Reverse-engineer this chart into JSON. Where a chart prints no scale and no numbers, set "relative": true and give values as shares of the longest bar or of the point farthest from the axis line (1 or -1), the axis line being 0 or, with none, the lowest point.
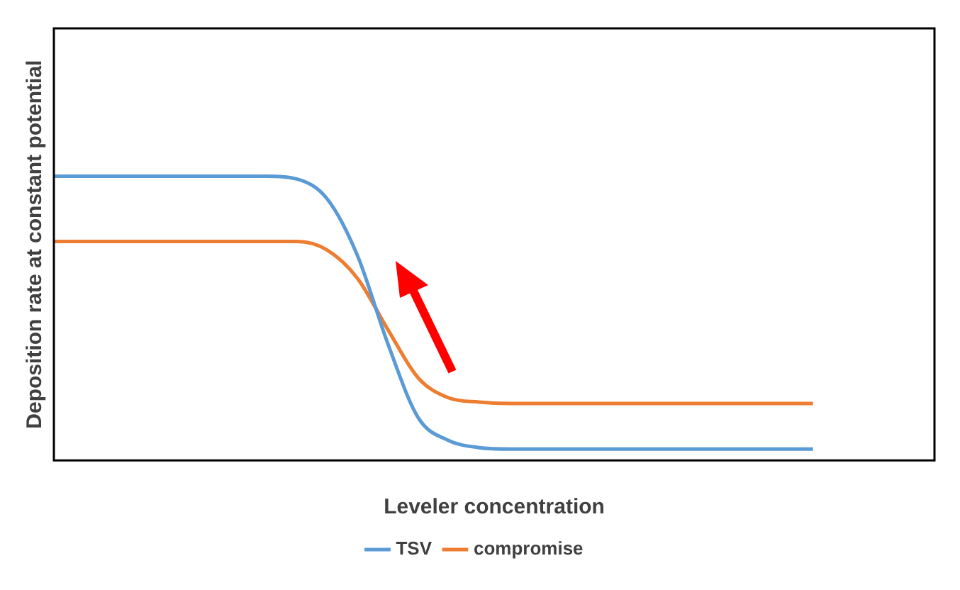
{
  "chart_data": {
    "type": "line",
    "relative": true,
    "xlabel": "Leveler concentration",
    "ylabel": "Deposition rate at constant potential",
    "categories": [
      null,
      null,
      null,
      null,
      null,
      null,
      null,
      null,
      null,
      null,
      null,
      null,
      null,
      null,
      null,
      null,
      null,
      null,
      null,
      null,
      null,
      null,
      null,
      null,
      null,
      null,
      null,
      null,
      null,
      null
    ],
    "series": [
      {
        "name": "TSV",
        "color": "#5b9bd5",
        "values": [
          1,
          1,
          1,
          1,
          1,
          1,
          1,
          1,
          0.99,
          0.92,
          0.72,
          0.41,
          0.15,
          0.07,
          0.045,
          0.04,
          0.04,
          0.04,
          0.04,
          0.04,
          0.04,
          0.04,
          0.04,
          0.04,
          0.04,
          0.04,
          null,
          null,
          null,
          null
        ]
      },
      {
        "name": "compromise",
        "color": "#ed7d31",
        "values": [
          0.77,
          0.77,
          0.77,
          0.77,
          0.77,
          0.77,
          0.77,
          0.77,
          0.77,
          0.74,
          0.64,
          0.46,
          0.29,
          0.22,
          0.205,
          0.2,
          0.2,
          0.2,
          0.2,
          0.2,
          0.2,
          0.2,
          0.2,
          0.2,
          0.2,
          0.2,
          null,
          null,
          null,
          null
        ]
      }
    ],
    "grid": false,
    "legend": "bottom",
    "marker": "none",
    "line_style": "solid"
  }
}
